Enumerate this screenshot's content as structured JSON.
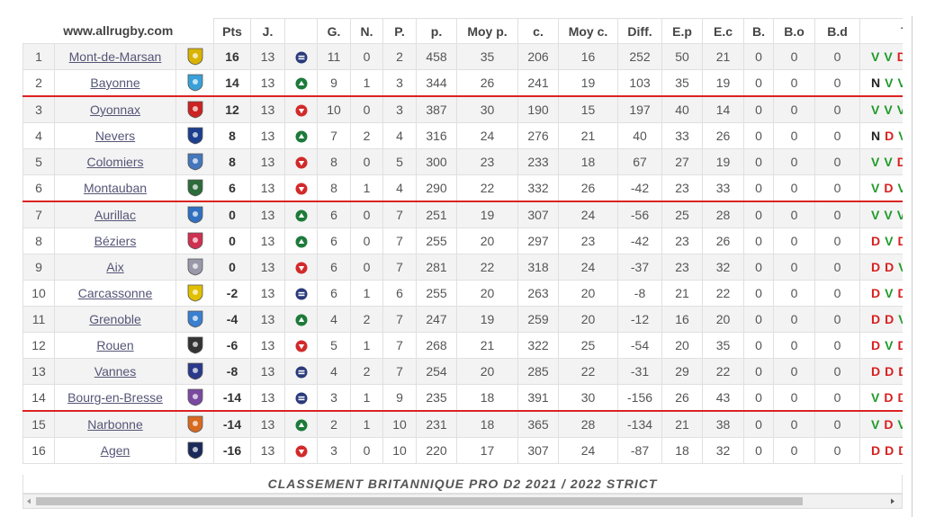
{
  "table": {
    "site": "www.allrugby.com",
    "headers": [
      "Pts",
      "J.",
      "G.",
      "N.",
      "P.",
      "p.",
      "Moy p.",
      "c.",
      "Moy c.",
      "Diff.",
      "E.p",
      "E.c",
      "B.",
      "B.o",
      "B.d",
      "T"
    ],
    "rows": [
      [
        1,
        "Mont-de-Marsan",
        16,
        13,
        11,
        0,
        2,
        458,
        35,
        206,
        16,
        252,
        50,
        21,
        0,
        0,
        0,
        [
          "V",
          "V",
          "D"
        ]
      ],
      [
        2,
        "Bayonne",
        14,
        13,
        9,
        1,
        3,
        344,
        26,
        241,
        19,
        103,
        35,
        19,
        0,
        0,
        0,
        [
          "N",
          "V",
          "V"
        ]
      ],
      [
        3,
        "Oyonnax",
        12,
        13,
        10,
        0,
        3,
        387,
        30,
        190,
        15,
        197,
        40,
        14,
        0,
        0,
        0,
        [
          "V",
          "V",
          "V"
        ]
      ],
      [
        4,
        "Nevers",
        8,
        13,
        7,
        2,
        4,
        316,
        24,
        276,
        21,
        40,
        33,
        26,
        0,
        0,
        0,
        [
          "N",
          "D",
          "V"
        ]
      ],
      [
        5,
        "Colomiers",
        8,
        13,
        8,
        0,
        5,
        300,
        23,
        233,
        18,
        67,
        27,
        19,
        0,
        0,
        0,
        [
          "V",
          "V",
          "D"
        ]
      ],
      [
        6,
        "Montauban",
        6,
        13,
        8,
        1,
        4,
        290,
        22,
        332,
        26,
        -42,
        23,
        33,
        0,
        0,
        0,
        [
          "V",
          "D",
          "V"
        ]
      ],
      [
        7,
        "Aurillac",
        0,
        13,
        6,
        0,
        7,
        251,
        19,
        307,
        24,
        -56,
        25,
        28,
        0,
        0,
        0,
        [
          "V",
          "V",
          "V"
        ]
      ],
      [
        8,
        "Béziers",
        0,
        13,
        6,
        0,
        7,
        255,
        20,
        297,
        23,
        -42,
        23,
        26,
        0,
        0,
        0,
        [
          "D",
          "V",
          "D"
        ]
      ],
      [
        9,
        "Aix",
        0,
        13,
        6,
        0,
        7,
        281,
        22,
        318,
        24,
        -37,
        23,
        32,
        0,
        0,
        0,
        [
          "D",
          "D",
          "V"
        ]
      ],
      [
        10,
        "Carcassonne",
        -2,
        13,
        6,
        1,
        6,
        255,
        20,
        263,
        20,
        -8,
        21,
        22,
        0,
        0,
        0,
        [
          "D",
          "V",
          "D"
        ]
      ],
      [
        11,
        "Grenoble",
        -4,
        13,
        4,
        2,
        7,
        247,
        19,
        259,
        20,
        -12,
        16,
        20,
        0,
        0,
        0,
        [
          "D",
          "D",
          "V"
        ]
      ],
      [
        12,
        "Rouen",
        -6,
        13,
        5,
        1,
        7,
        268,
        21,
        322,
        25,
        -54,
        20,
        35,
        0,
        0,
        0,
        [
          "D",
          "V",
          "D"
        ]
      ],
      [
        13,
        "Vannes",
        -8,
        13,
        4,
        2,
        7,
        254,
        20,
        285,
        22,
        -31,
        29,
        22,
        0,
        0,
        0,
        [
          "D",
          "D",
          "D"
        ]
      ],
      [
        14,
        "Bourg-en-Bresse",
        -14,
        13,
        3,
        1,
        9,
        235,
        18,
        391,
        30,
        -156,
        26,
        43,
        0,
        0,
        0,
        [
          "V",
          "D",
          "D"
        ]
      ],
      [
        15,
        "Narbonne",
        -14,
        13,
        2,
        1,
        10,
        231,
        18,
        365,
        28,
        -134,
        21,
        38,
        0,
        0,
        0,
        [
          "V",
          "D",
          "V"
        ]
      ],
      [
        16,
        "Agen",
        -16,
        13,
        3,
        0,
        10,
        220,
        17,
        307,
        24,
        -87,
        18,
        32,
        0,
        0,
        0,
        [
          "D",
          "D",
          "D"
        ]
      ]
    ],
    "trends": [
      "same",
      "up",
      "down",
      "up",
      "down",
      "down",
      "up",
      "up",
      "down",
      "same",
      "up",
      "down",
      "same",
      "same",
      "up",
      "down"
    ],
    "caption": "CLASSEMENT BRITANNIQUE PRO D2 2021 / 2022 STRICT"
  }
}
